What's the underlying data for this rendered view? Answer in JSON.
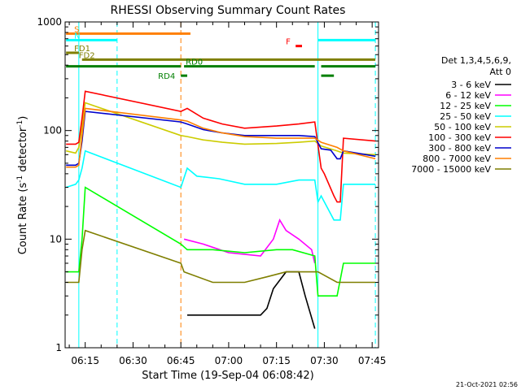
{
  "chart_data": {
    "type": "line",
    "title": "RHESSI Observing Summary Count Rates",
    "xlabel": "Start Time (19-Sep-04 06:08:42)",
    "ylabel_main": "Count Rate (s",
    "ylabel_sup1": "-1",
    "ylabel_mid": " detector",
    "ylabel_sup2": "-1",
    "ylabel_end": ")",
    "footer": "21-Oct-2021 02:56",
    "y_scale": "log",
    "xlim": [
      "06:08:42",
      "07:47:00"
    ],
    "ylim": [
      1,
      1000
    ],
    "x_ticks": [
      "06:15",
      "06:30",
      "06:45",
      "07:00",
      "07:15",
      "07:30",
      "07:45"
    ],
    "y_ticks": [
      {
        "value": 1,
        "label": "1"
      },
      {
        "value": 10,
        "label": "10"
      },
      {
        "value": 100,
        "label": "100"
      },
      {
        "value": 1000,
        "label": "1000"
      }
    ],
    "legend_title": [
      "Det 1,3,4,5,6,9,",
      "Att 0"
    ],
    "flags": [
      {
        "label": "S",
        "color": "#ff7f00",
        "y": 780,
        "spans": [
          [
            "06:09",
            "06:48"
          ]
        ]
      },
      {
        "label": "N",
        "color": "#00ffff",
        "y": 680,
        "spans": [
          [
            "06:09",
            "06:25"
          ],
          [
            "07:28",
            "07:46"
          ]
        ]
      },
      {
        "label": "F",
        "color": "#ff0000",
        "y": 600,
        "spans": [
          [
            "07:21",
            "07:23"
          ]
        ]
      },
      {
        "label": "FD1",
        "color": "#7f7f00",
        "y": 520,
        "spans": [
          [
            "06:09",
            "06:13"
          ]
        ]
      },
      {
        "label": "FD2",
        "color": "#7f7f00",
        "y": 450,
        "spans": [
          [
            "06:14",
            "07:46"
          ]
        ]
      },
      {
        "label": "RD0",
        "color": "#007f00",
        "y": 390,
        "spans": [
          [
            "06:09",
            "06:45"
          ],
          [
            "06:46",
            "07:27"
          ],
          [
            "07:29",
            "07:46"
          ]
        ]
      },
      {
        "label": "RD4",
        "color": "#007f00",
        "y": 320,
        "spans": [
          [
            "06:45",
            "06:47"
          ],
          [
            "07:29",
            "07:33"
          ]
        ]
      }
    ],
    "vlines": [
      {
        "time": "06:13",
        "color": "#00ffff",
        "style": "solid"
      },
      {
        "time": "06:25",
        "color": "#00ffff",
        "style": "dashed"
      },
      {
        "time": "06:45",
        "color": "#ff7f00",
        "style": "dashed"
      },
      {
        "time": "07:28",
        "color": "#00ffff",
        "style": "solid"
      },
      {
        "time": "07:46",
        "color": "#00ffff",
        "style": "dashed"
      }
    ],
    "series": [
      {
        "name": "3 - 6 keV",
        "color": "#000000",
        "x": [
          "06:47",
          "06:58",
          "07:10",
          "07:12",
          "07:14",
          "07:18",
          "07:22",
          "07:24",
          "07:27"
        ],
        "y": [
          2,
          2,
          2,
          2.3,
          3.5,
          5,
          5,
          3,
          1.5
        ]
      },
      {
        "name": "6 - 12 keV",
        "color": "#ff00ff",
        "x": [
          "06:46",
          "06:52",
          "07:00",
          "07:10",
          "07:14",
          "07:16",
          "07:18",
          "07:22",
          "07:26",
          "07:27"
        ],
        "y": [
          10,
          9,
          7.5,
          7,
          10,
          15,
          12,
          10,
          8,
          6
        ]
      },
      {
        "name": "12 - 25 keV",
        "color": "#00ff00",
        "x": [
          "06:09",
          "06:12",
          "06:13",
          "06:14",
          "06:15",
          "06:45",
          "06:47",
          "06:55",
          "07:05",
          "07:15",
          "07:20",
          "07:27",
          "07:28",
          "07:34",
          "07:36",
          "07:46"
        ],
        "y": [
          5,
          5,
          5,
          10,
          30,
          9,
          8,
          8,
          7.5,
          8,
          8,
          7,
          3,
          3,
          6,
          6
        ]
      },
      {
        "name": "25 - 50 keV",
        "color": "#00ffff",
        "x": [
          "06:09",
          "06:12",
          "06:13",
          "06:14",
          "06:15",
          "06:45",
          "06:47",
          "06:50",
          "06:57",
          "07:05",
          "07:15",
          "07:22",
          "07:27",
          "07:28",
          "07:29",
          "07:33",
          "07:35",
          "07:36",
          "07:46"
        ],
        "y": [
          30,
          32,
          35,
          45,
          65,
          30,
          45,
          38,
          36,
          32,
          32,
          35,
          35,
          22,
          25,
          15,
          15,
          32,
          32
        ]
      },
      {
        "name": "50 - 100 keV",
        "color": "#cccc00",
        "x": [
          "06:09",
          "06:12",
          "06:13",
          "06:14",
          "06:15",
          "06:45",
          "06:47",
          "06:52",
          "06:58",
          "07:05",
          "07:15",
          "07:22",
          "07:27",
          "07:29",
          "07:34",
          "07:36",
          "07:46"
        ],
        "y": [
          65,
          62,
          70,
          110,
          180,
          90,
          88,
          82,
          78,
          75,
          76,
          78,
          80,
          72,
          65,
          62,
          60
        ]
      },
      {
        "name": "100 - 300 keV",
        "color": "#ff0000",
        "x": [
          "06:09",
          "06:12",
          "06:13",
          "06:14",
          "06:15",
          "06:45",
          "06:47",
          "06:52",
          "06:58",
          "07:05",
          "07:15",
          "07:22",
          "07:27",
          "07:29",
          "07:30",
          "07:33",
          "07:34",
          "07:35",
          "07:36",
          "07:46"
        ],
        "y": [
          75,
          75,
          78,
          130,
          230,
          150,
          160,
          130,
          115,
          105,
          110,
          115,
          120,
          45,
          40,
          25,
          22,
          22,
          85,
          80
        ]
      },
      {
        "name": "300 - 800 keV",
        "color": "#0000cc",
        "x": [
          "06:09",
          "06:12",
          "06:13",
          "06:14",
          "06:15",
          "06:45",
          "06:47",
          "06:52",
          "06:58",
          "07:05",
          "07:15",
          "07:22",
          "07:27",
          "07:29",
          "07:32",
          "07:34",
          "07:35",
          "07:36",
          "07:46"
        ],
        "y": [
          48,
          48,
          50,
          80,
          150,
          120,
          115,
          102,
          95,
          90,
          90,
          90,
          88,
          68,
          66,
          55,
          55,
          65,
          58
        ]
      },
      {
        "name": "800 - 7000 keV",
        "color": "#ff7f00",
        "x": [
          "06:09",
          "06:12",
          "06:13",
          "06:14",
          "06:15",
          "06:45",
          "06:47",
          "06:52",
          "06:58",
          "07:05",
          "07:15",
          "07:22",
          "07:27",
          "07:29",
          "07:34",
          "07:36",
          "07:46"
        ],
        "y": [
          46,
          46,
          48,
          90,
          160,
          125,
          122,
          105,
          95,
          88,
          85,
          85,
          85,
          78,
          70,
          65,
          55
        ]
      },
      {
        "name": "7000 - 15000 keV",
        "color": "#7f7f00",
        "x": [
          "06:09",
          "06:12",
          "06:13",
          "06:14",
          "06:15",
          "06:45",
          "06:46",
          "06:55",
          "07:05",
          "07:12",
          "07:18",
          "07:27",
          "07:28",
          "07:34",
          "07:36",
          "07:46"
        ],
        "y": [
          4,
          4,
          4,
          8,
          12,
          6,
          5,
          4,
          4,
          4.5,
          5,
          5,
          5,
          4,
          4,
          4
        ]
      }
    ]
  }
}
